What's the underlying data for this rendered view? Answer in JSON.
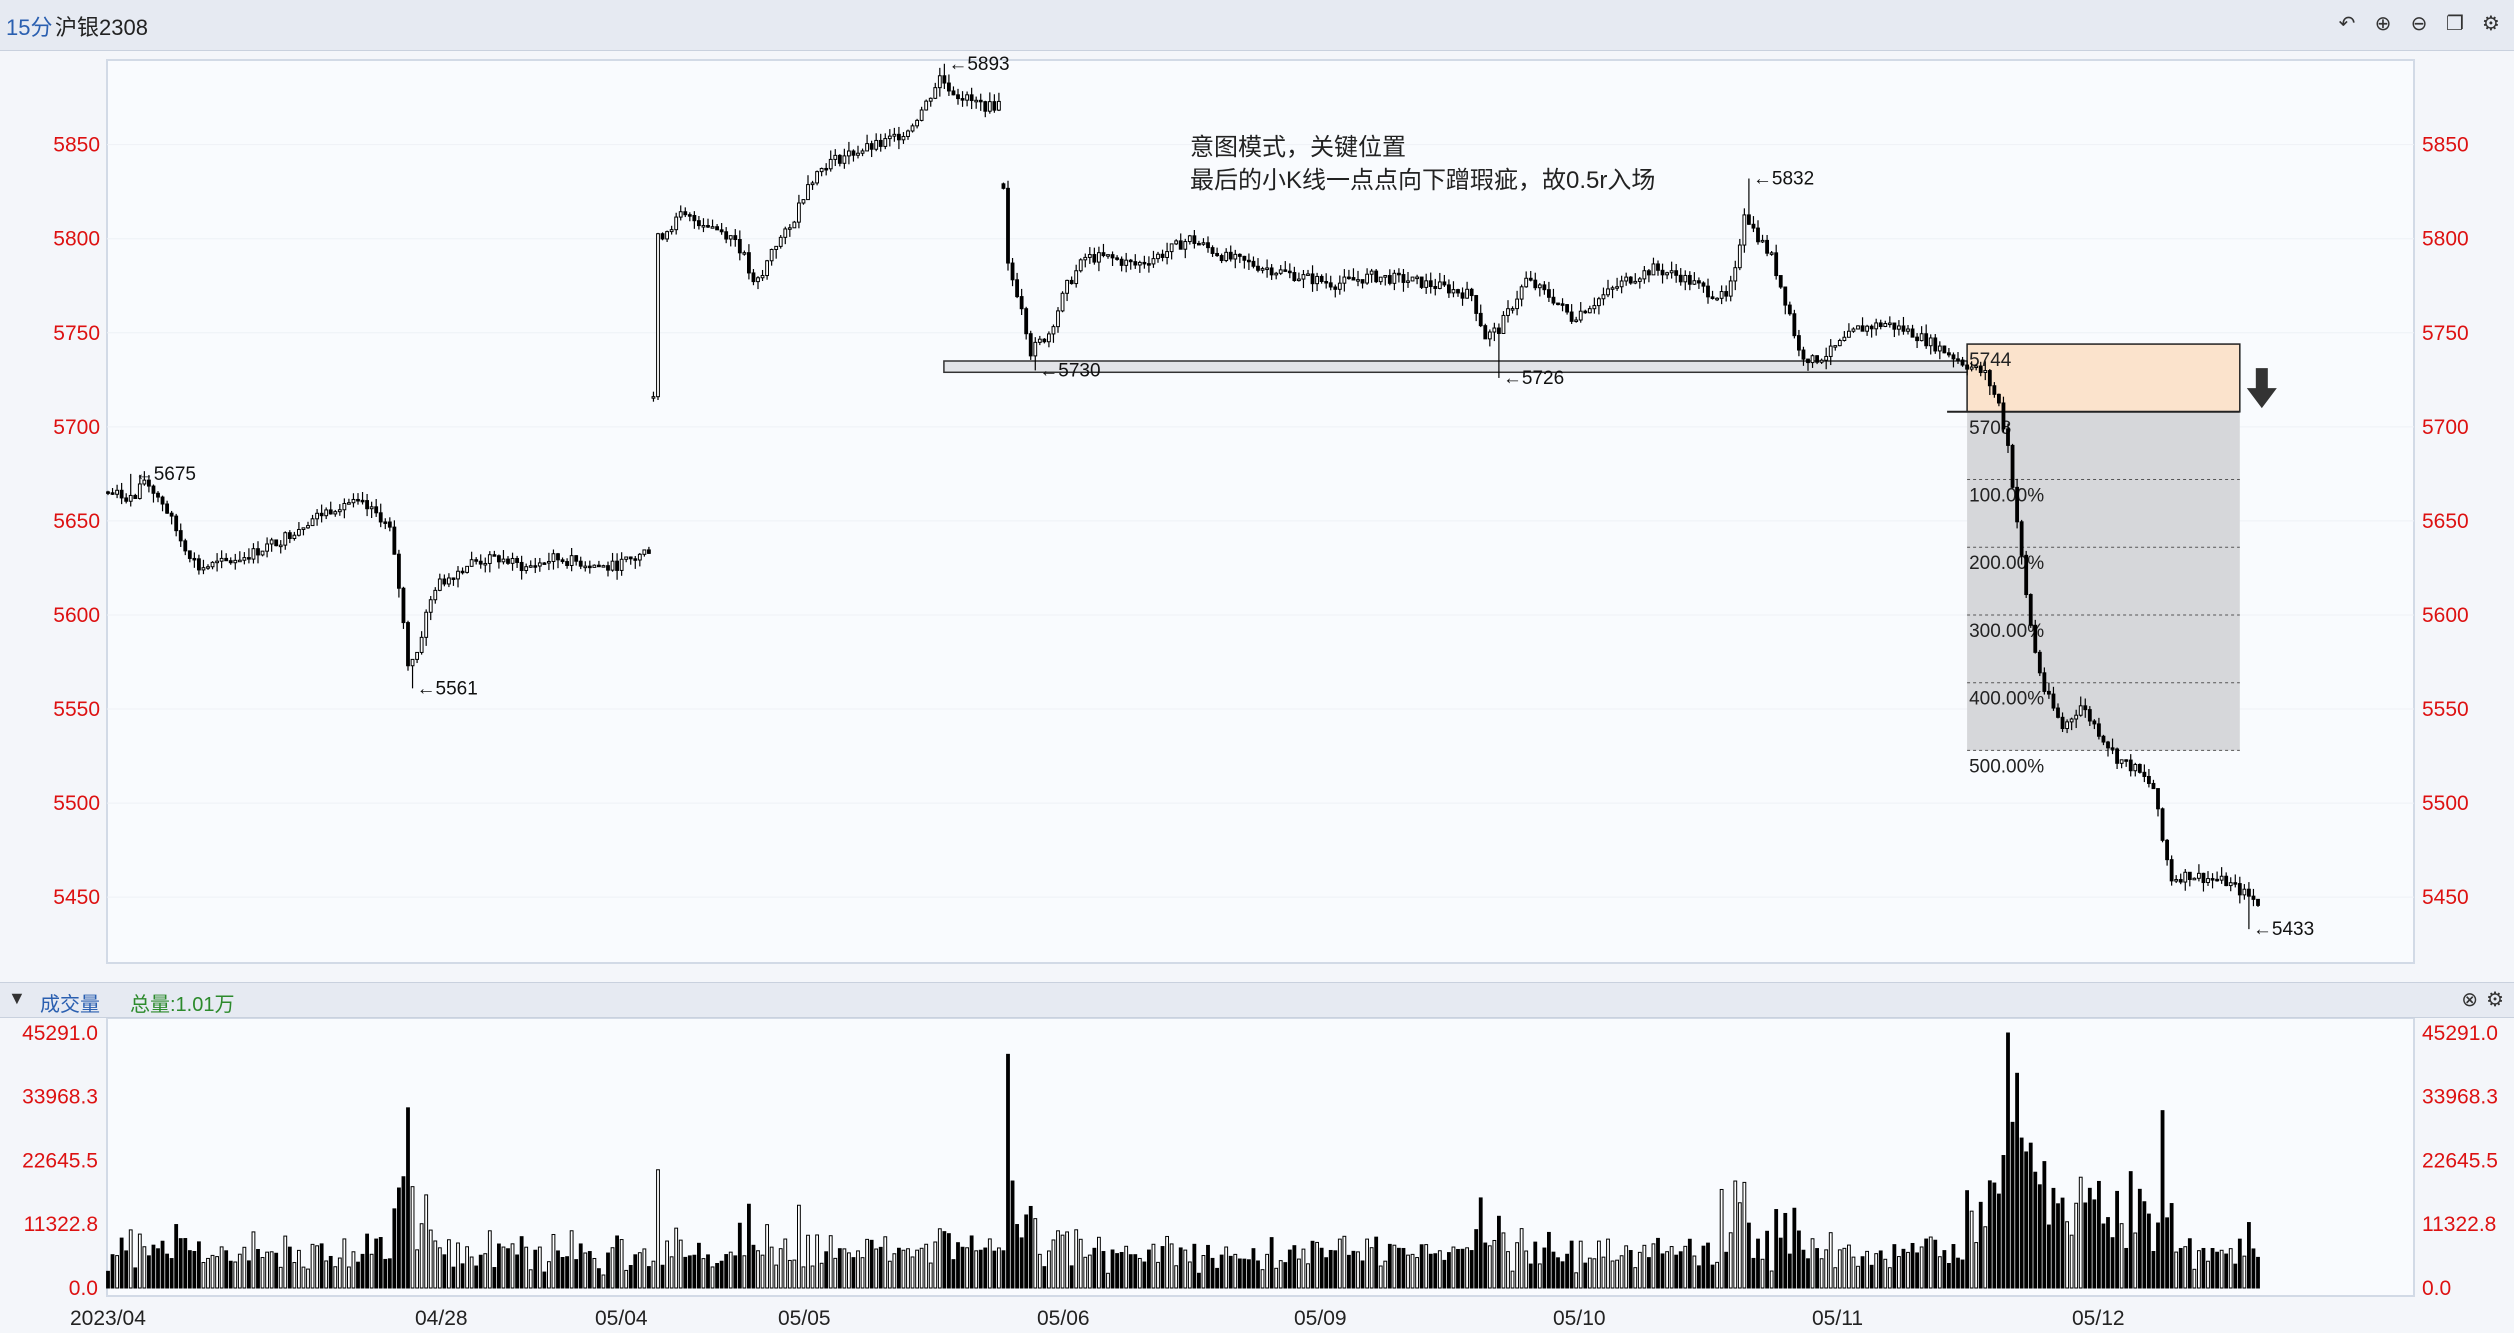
{
  "toolbar": {
    "period": "15分",
    "symbol": "沪银2308",
    "icons": [
      "undo-icon",
      "zoom-in-icon",
      "zoom-out-icon",
      "layout-icon",
      "settings-icon"
    ]
  },
  "annotation": {
    "line1": "意图模式，关键位置",
    "line2": "最后的小K线一点点向下蹭瑕疵，故0.5r入场"
  },
  "volume_header": {
    "title": "成交量",
    "total": "总量:1.01万"
  },
  "colors": {
    "axis_text": "#dd1111",
    "candle": "#000000",
    "entry_zone": "#fbe3cc",
    "target_zone": "#d6d7da",
    "volume_total": "#2c8a2c",
    "title_blue": "#2a5fb0"
  },
  "chart_data": [
    {
      "type": "candlestick",
      "title": "沪银2308",
      "period": "15分",
      "ylim": [
        5415,
        5895
      ],
      "y_ticks": [
        5850,
        5800,
        5750,
        5700,
        5650,
        5600,
        5550,
        5500,
        5450
      ],
      "x_ticks": [
        "2023/04",
        "04/28",
        "05/04",
        "05/05",
        "05/06",
        "05/09",
        "05/10",
        "05/11",
        "05/12"
      ],
      "price_path": [
        [
          0,
          5665
        ],
        [
          6,
          5662
        ],
        [
          8,
          5672
        ],
        [
          12,
          5660
        ],
        [
          16,
          5640
        ],
        [
          20,
          5625
        ],
        [
          26,
          5628
        ],
        [
          32,
          5633
        ],
        [
          38,
          5640
        ],
        [
          44,
          5650
        ],
        [
          48,
          5655
        ],
        [
          52,
          5660
        ],
        [
          56,
          5658
        ],
        [
          60,
          5652
        ],
        [
          62,
          5645
        ],
        [
          64,
          5615
        ],
        [
          66,
          5575
        ],
        [
          68,
          5580
        ],
        [
          70,
          5600
        ],
        [
          72,
          5615
        ],
        [
          76,
          5622
        ],
        [
          80,
          5628
        ],
        [
          86,
          5630
        ],
        [
          92,
          5625
        ],
        [
          98,
          5630
        ],
        [
          104,
          5628
        ],
        [
          110,
          5625
        ],
        [
          116,
          5630
        ],
        [
          119,
          5635
        ],
        [
          121,
          5800
        ],
        [
          126,
          5812
        ],
        [
          132,
          5808
        ],
        [
          138,
          5800
        ],
        [
          140,
          5790
        ],
        [
          142,
          5775
        ],
        [
          144,
          5780
        ],
        [
          146,
          5795
        ],
        [
          150,
          5805
        ],
        [
          154,
          5830
        ],
        [
          158,
          5840
        ],
        [
          164,
          5846
        ],
        [
          170,
          5850
        ],
        [
          176,
          5858
        ],
        [
          180,
          5872
        ],
        [
          183,
          5886
        ],
        [
          186,
          5878
        ],
        [
          190,
          5873
        ],
        [
          194,
          5870
        ],
        [
          196,
          5872
        ],
        [
          198,
          5785
        ],
        [
          201,
          5765
        ],
        [
          203,
          5740
        ],
        [
          207,
          5750
        ],
        [
          211,
          5775
        ],
        [
          215,
          5790
        ],
        [
          220,
          5790
        ],
        [
          226,
          5786
        ],
        [
          232,
          5792
        ],
        [
          238,
          5800
        ],
        [
          246,
          5790
        ],
        [
          254,
          5785
        ],
        [
          262,
          5780
        ],
        [
          270,
          5776
        ],
        [
          278,
          5780
        ],
        [
          286,
          5778
        ],
        [
          294,
          5774
        ],
        [
          300,
          5770
        ],
        [
          303,
          5748
        ],
        [
          306,
          5752
        ],
        [
          312,
          5778
        ],
        [
          318,
          5768
        ],
        [
          322,
          5758
        ],
        [
          328,
          5768
        ],
        [
          334,
          5778
        ],
        [
          340,
          5784
        ],
        [
          346,
          5780
        ],
        [
          352,
          5772
        ],
        [
          356,
          5768
        ],
        [
          358,
          5782
        ],
        [
          360,
          5815
        ],
        [
          362,
          5805
        ],
        [
          366,
          5790
        ],
        [
          370,
          5760
        ],
        [
          372,
          5740
        ],
        [
          375,
          5735
        ],
        [
          379,
          5740
        ],
        [
          385,
          5752
        ],
        [
          391,
          5755
        ],
        [
          397,
          5750
        ],
        [
          403,
          5742
        ],
        [
          409,
          5733
        ],
        [
          413,
          5728
        ],
        [
          416,
          5712
        ],
        [
          418,
          5690
        ],
        [
          420,
          5650
        ],
        [
          422,
          5610
        ],
        [
          424,
          5580
        ],
        [
          426,
          5560
        ],
        [
          430,
          5540
        ],
        [
          434,
          5552
        ],
        [
          438,
          5538
        ],
        [
          442,
          5524
        ],
        [
          446,
          5518
        ],
        [
          450,
          5508
        ],
        [
          452,
          5480
        ],
        [
          454,
          5460
        ],
        [
          458,
          5462
        ],
        [
          462,
          5460
        ],
        [
          466,
          5458
        ],
        [
          470,
          5452
        ],
        [
          473,
          5447
        ]
      ],
      "marks": [
        {
          "label": "←5675",
          "x": 5,
          "y": 5675
        },
        {
          "label": "←5561",
          "x": 67,
          "y": 5561
        },
        {
          "label": "←5893",
          "x": 184,
          "y": 5893
        },
        {
          "label": "←5730",
          "x": 204,
          "y": 5730
        },
        {
          "label": "←5726",
          "x": 306,
          "y": 5726
        },
        {
          "label": "←5832",
          "x": 361,
          "y": 5832
        },
        {
          "label": "←5433",
          "x": 471,
          "y": 5433
        }
      ],
      "support_band": {
        "x_start": 185,
        "x_end": 460,
        "y_low": 5729,
        "y_high": 5735
      },
      "entry_zone": {
        "x_start": 409,
        "x_end": 469,
        "top_label": "5744",
        "bottom_label": "5708",
        "top": 5744,
        "bottom": 5708
      },
      "target_zone": {
        "x_start": 409,
        "x_end": 469,
        "levels": [
          {
            "label": "100.00%",
            "price": 5672
          },
          {
            "label": "200.00%",
            "price": 5636
          },
          {
            "label": "300.00%",
            "price": 5600
          },
          {
            "label": "400.00%",
            "price": 5564
          },
          {
            "label": "500.00%",
            "price": 5528
          }
        ]
      },
      "direction_arrow": "down"
    },
    {
      "type": "bar",
      "title": "成交量",
      "total": "总量:1.01万",
      "y_ticks": [
        45291.0,
        33968.3,
        22645.5,
        11322.8,
        0.0
      ],
      "y_tick_labels": [
        "45291.0",
        "33968.3",
        "22645.5",
        "11322.8",
        "0.0"
      ],
      "ylim": [
        0,
        45291
      ]
    }
  ]
}
